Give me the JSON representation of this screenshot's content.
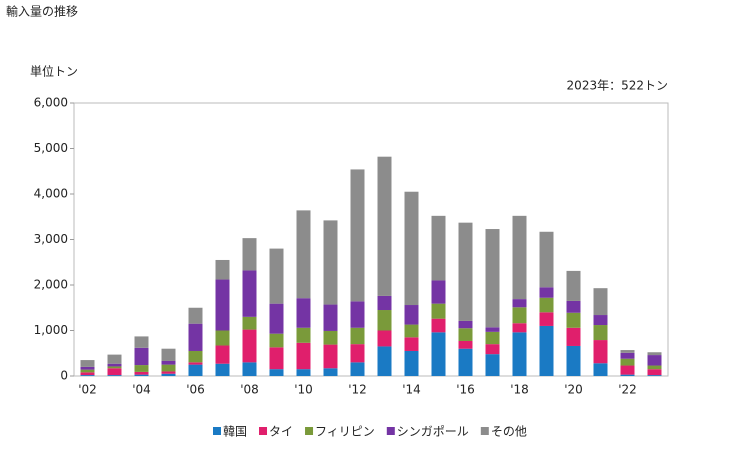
{
  "chart_data": {
    "type": "stacked_bar",
    "title": "輸入量の推移",
    "y_label": "単位トン",
    "annotation": "2023年：522トン",
    "categories": [
      "'02",
      null,
      "'04",
      null,
      "'06",
      null,
      "'08",
      null,
      "'10",
      null,
      "'12",
      null,
      "'14",
      null,
      "'16",
      null,
      "'18",
      null,
      "'20",
      null,
      "'22",
      null
    ],
    "series": [
      {
        "name": "韓国",
        "color": "#1a7ac4",
        "values": [
          20,
          20,
          30,
          50,
          250,
          270,
          300,
          150,
          150,
          170,
          300,
          650,
          550,
          960,
          600,
          480,
          960,
          1100,
          660,
          280,
          30,
          20
        ]
      },
      {
        "name": "タイ",
        "color": "#e01f6c",
        "values": [
          60,
          150,
          60,
          50,
          50,
          400,
          720,
          480,
          580,
          520,
          400,
          350,
          300,
          300,
          170,
          220,
          200,
          300,
          400,
          510,
          200,
          130
        ]
      },
      {
        "name": "フィリピン",
        "color": "#7a9a3a",
        "values": [
          60,
          40,
          150,
          150,
          250,
          330,
          280,
          300,
          330,
          300,
          360,
          450,
          280,
          330,
          280,
          270,
          350,
          320,
          330,
          330,
          150,
          80
        ]
      },
      {
        "name": "シンガポール",
        "color": "#7434a4",
        "values": [
          60,
          60,
          380,
          80,
          600,
          1120,
          1020,
          660,
          650,
          580,
          580,
          310,
          430,
          510,
          160,
          100,
          180,
          230,
          260,
          220,
          130,
          230
        ]
      },
      {
        "name": "その他",
        "color": "#8c8c8c",
        "values": [
          150,
          200,
          250,
          270,
          350,
          430,
          710,
          1210,
          1930,
          1850,
          2900,
          3060,
          2490,
          1420,
          2160,
          2160,
          1830,
          1220,
          660,
          590,
          60,
          62
        ]
      }
    ],
    "ylim": [
      0,
      6000
    ],
    "yticks": [
      0,
      {
        "value": 1000,
        "label": "1,000"
      },
      {
        "value": 2000,
        "label": "2,000"
      },
      {
        "value": 3000,
        "label": "3,000"
      },
      {
        "value": 4000,
        "label": "4,000"
      },
      {
        "value": 5000,
        "label": "5,000"
      },
      {
        "value": 6000,
        "label": "6,000"
      }
    ],
    "grid": false
  }
}
